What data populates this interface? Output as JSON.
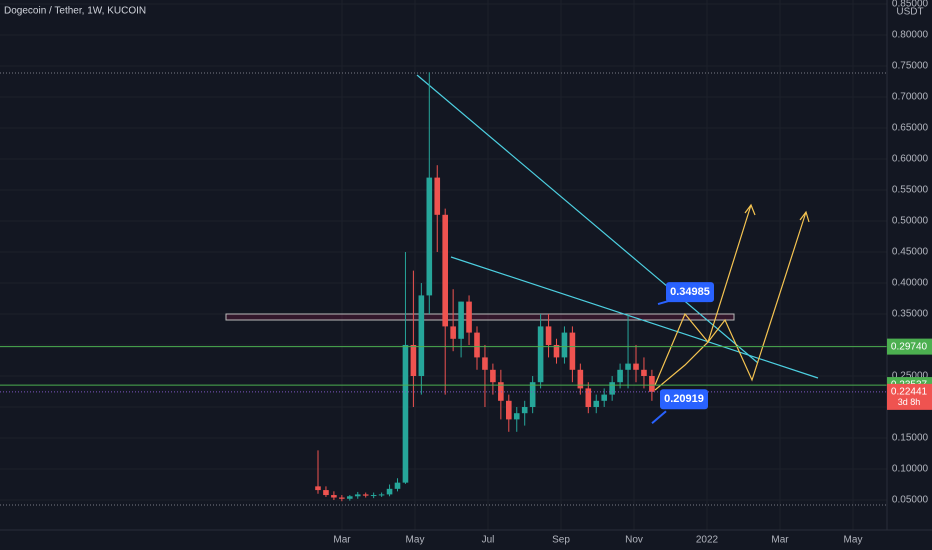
{
  "chart_data": {
    "type": "candlestick",
    "title": "Dogecoin / Tether, 1W, KUCOIN",
    "y_axis_label": "USDT",
    "ylim": [
      0,
      0.85
    ],
    "yticks": [
      {
        "value": 0.05,
        "label": "0.05000"
      },
      {
        "value": 0.1,
        "label": "0.10000"
      },
      {
        "value": 0.15,
        "label": "0.15000"
      },
      {
        "value": 0.2,
        "label": "0.20000"
      },
      {
        "value": 0.25,
        "label": "0.25000"
      },
      {
        "value": 0.3,
        "label": "0.30000"
      },
      {
        "value": 0.35,
        "label": "0.35000"
      },
      {
        "value": 0.4,
        "label": "0.40000"
      },
      {
        "value": 0.45,
        "label": "0.45000"
      },
      {
        "value": 0.5,
        "label": "0.50000"
      },
      {
        "value": 0.55,
        "label": "0.55000"
      },
      {
        "value": 0.6,
        "label": "0.60000"
      },
      {
        "value": 0.65,
        "label": "0.65000"
      },
      {
        "value": 0.7,
        "label": "0.70000"
      },
      {
        "value": 0.75,
        "label": "0.75000"
      },
      {
        "value": 0.8,
        "label": "0.80000"
      },
      {
        "value": 0.85,
        "label": "0.85000"
      }
    ],
    "xticks": [
      "Mar",
      "May",
      "Jul",
      "Sep",
      "Nov",
      "2022",
      "Mar",
      "May"
    ],
    "up_color": "#26a69a",
    "down_color": "#ef5350",
    "open": [
      0.072,
      0.066,
      0.058,
      0.054,
      0.052,
      0.056,
      0.059,
      0.057,
      0.058,
      0.059,
      0.068,
      0.078,
      0.3,
      0.25,
      0.38,
      0.57,
      0.51,
      0.33,
      0.31,
      0.37,
      0.32,
      0.28,
      0.26,
      0.24,
      0.21,
      0.18,
      0.19,
      0.2,
      0.24,
      0.33,
      0.3,
      0.28,
      0.32,
      0.26,
      0.23,
      0.2,
      0.21,
      0.22,
      0.24,
      0.26,
      0.27,
      0.26,
      0.25
    ],
    "high": [
      0.13,
      0.072,
      0.064,
      0.058,
      0.058,
      0.063,
      0.062,
      0.062,
      0.062,
      0.075,
      0.085,
      0.45,
      0.42,
      0.4,
      0.74,
      0.59,
      0.52,
      0.39,
      0.37,
      0.38,
      0.33,
      0.3,
      0.27,
      0.26,
      0.22,
      0.2,
      0.21,
      0.25,
      0.35,
      0.35,
      0.31,
      0.33,
      0.33,
      0.27,
      0.24,
      0.22,
      0.23,
      0.25,
      0.27,
      0.35,
      0.3,
      0.28,
      0.26
    ],
    "low": [
      0.06,
      0.055,
      0.05,
      0.048,
      0.049,
      0.052,
      0.054,
      0.053,
      0.055,
      0.056,
      0.064,
      0.076,
      0.2,
      0.22,
      0.35,
      0.45,
      0.22,
      0.29,
      0.28,
      0.3,
      0.26,
      0.2,
      0.22,
      0.18,
      0.16,
      0.16,
      0.17,
      0.19,
      0.23,
      0.28,
      0.27,
      0.27,
      0.24,
      0.22,
      0.19,
      0.19,
      0.2,
      0.21,
      0.23,
      0.23,
      0.24,
      0.23,
      0.21
    ],
    "close": [
      0.066,
      0.058,
      0.054,
      0.052,
      0.056,
      0.059,
      0.057,
      0.058,
      0.059,
      0.068,
      0.078,
      0.3,
      0.25,
      0.38,
      0.57,
      0.51,
      0.33,
      0.31,
      0.37,
      0.32,
      0.28,
      0.26,
      0.24,
      0.21,
      0.18,
      0.19,
      0.2,
      0.24,
      0.33,
      0.3,
      0.28,
      0.32,
      0.26,
      0.23,
      0.2,
      0.21,
      0.22,
      0.24,
      0.26,
      0.27,
      0.26,
      0.25,
      0.22441
    ],
    "levels": [
      {
        "value": 0.2974,
        "label": "0.29740",
        "color": "#4caf50"
      },
      {
        "value": 0.23537,
        "label": "0.23537",
        "color": "#4caf50"
      }
    ],
    "last_price": {
      "value": 0.22441,
      "label": "0.22441",
      "countdown": "3d 8h",
      "color": "#ef5350"
    },
    "callouts": [
      {
        "value": 0.34985,
        "label": "0.34985"
      },
      {
        "value": 0.20919,
        "label": "0.20919"
      }
    ]
  }
}
